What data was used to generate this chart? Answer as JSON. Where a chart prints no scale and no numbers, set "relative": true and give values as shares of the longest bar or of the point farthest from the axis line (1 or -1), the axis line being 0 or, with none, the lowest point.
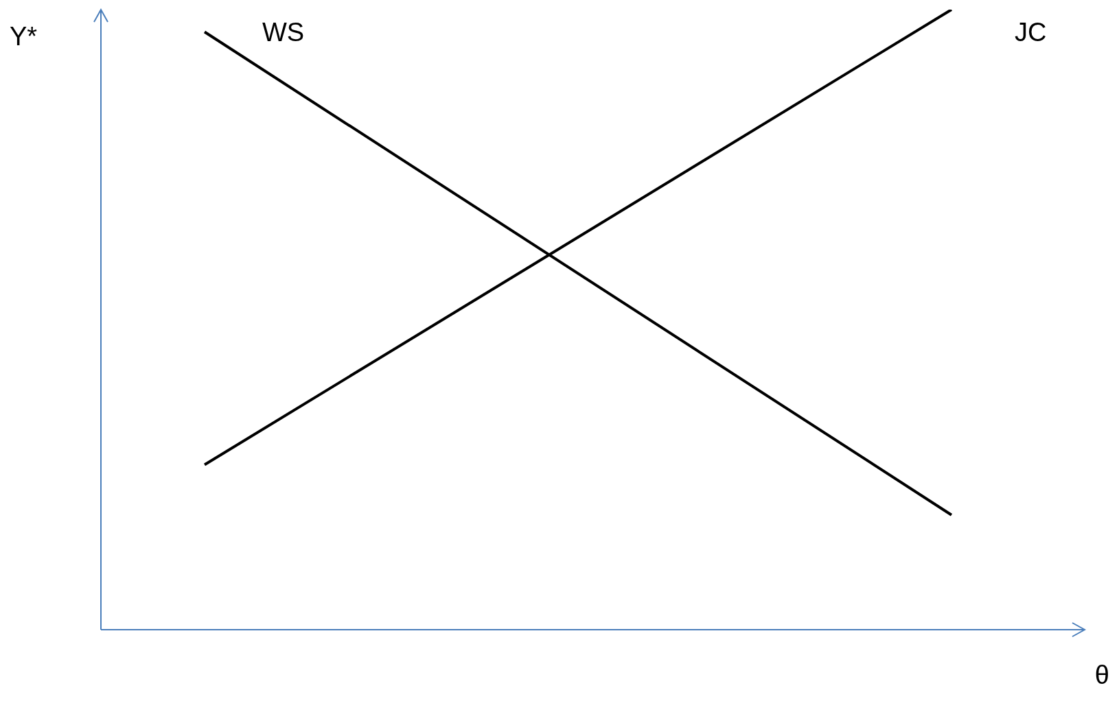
{
  "chart_data": {
    "type": "line",
    "xlabel": "θ",
    "ylabel": "Y*",
    "relative": true,
    "categories": [
      null,
      null
    ],
    "marker": "none",
    "line_style": "solid",
    "series": [
      {
        "name": "WS",
        "color": "#000000",
        "values": [
          0.964,
          0.185
        ]
      },
      {
        "name": "JC",
        "color": "#000000",
        "values": [
          0.266,
          1
        ]
      }
    ]
  }
}
